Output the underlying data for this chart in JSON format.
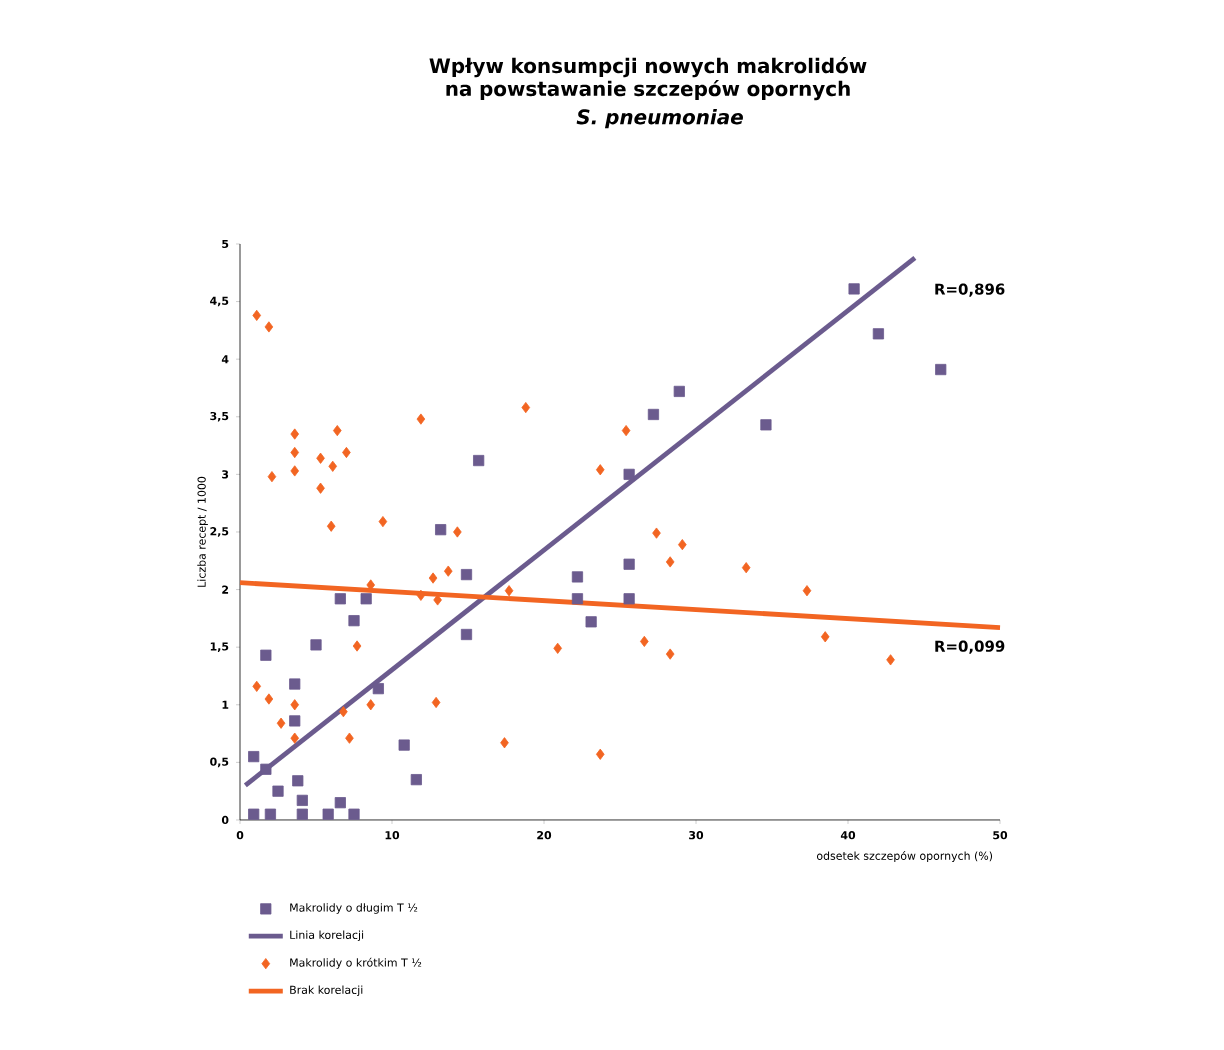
{
  "chart_data": {
    "type": "scatter",
    "title": "Wpływ konsumpcji nowych makrolidów na powstawanie szczepów opornych",
    "subtitle": "S. pneumoniae",
    "xlabel": "odsetek szczepów opornych (%)",
    "ylabel": "Liczba recept / 1000",
    "xlim": [
      0,
      50
    ],
    "ylim": [
      0,
      5
    ],
    "xticks": [
      0,
      10,
      20,
      30,
      40,
      50
    ],
    "yticks": [
      0,
      {
        "value": 0.5,
        "label": "0,5"
      },
      1,
      {
        "value": 1.5,
        "label": "1,5"
      },
      2,
      {
        "value": 2.5,
        "label": "2,5"
      },
      3,
      {
        "value": 3.5,
        "label": "3,5"
      },
      4,
      {
        "value": 4.5,
        "label": "4,5"
      },
      5
    ],
    "grid": false,
    "legend": "bottom",
    "series": [
      {
        "name": "Makrolidy o długim T ½",
        "marker": "square",
        "color": "#6b5b8e",
        "x": [
          0.9,
          0.9,
          1.7,
          1.7,
          2.0,
          2.5,
          3.6,
          3.6,
          3.8,
          4.1,
          4.1,
          5.8,
          5.0,
          6.6,
          6.6,
          7.5,
          7.5,
          8.3,
          9.1,
          10.8,
          11.6,
          13.2,
          14.9,
          14.9,
          22.2,
          22.2,
          23.1,
          25.6,
          25.6,
          15.7,
          25.6,
          27.2,
          28.9,
          34.6,
          40.4,
          42.0,
          46.1
        ],
        "values": [
          0.55,
          0.05,
          1.43,
          0.44,
          0.05,
          0.25,
          1.18,
          0.86,
          0.34,
          0.17,
          0.05,
          0.05,
          1.52,
          1.92,
          0.15,
          1.73,
          0.05,
          1.92,
          1.14,
          0.65,
          0.35,
          2.52,
          2.13,
          1.61,
          2.11,
          1.92,
          1.72,
          2.22,
          1.92,
          3.12,
          3.0,
          3.52,
          3.72,
          3.43,
          4.61,
          4.22,
          3.91
        ]
      },
      {
        "name": "Linia korelacji",
        "type": "line",
        "marker": "none",
        "color": "#6b5b8e",
        "x": [
          0.35,
          44.4
        ],
        "values": [
          0.3,
          4.88
        ]
      },
      {
        "name": "Makrolidy o krótkim T ½",
        "marker": "diamond",
        "color": "#f26522",
        "x": [
          1.1,
          1.9,
          2.1,
          3.6,
          3.6,
          3.6,
          5.3,
          5.3,
          6.1,
          6.4,
          7.0,
          11.9,
          18.8,
          23.7,
          25.4,
          6.0,
          9.4,
          14.3,
          12.7,
          13.7,
          11.9,
          13.0,
          8.6,
          17.7,
          7.7,
          1.1,
          1.9,
          2.7,
          3.6,
          3.6,
          6.8,
          7.2,
          8.6,
          12.9,
          17.4,
          23.7,
          20.9,
          26.6,
          27.4,
          28.3,
          29.1,
          28.3,
          33.3,
          37.3,
          38.5,
          42.8
        ],
        "values": [
          4.38,
          4.28,
          2.98,
          3.35,
          3.19,
          3.03,
          3.14,
          2.88,
          3.07,
          3.38,
          3.19,
          3.48,
          3.58,
          3.04,
          3.38,
          2.55,
          2.59,
          2.5,
          2.1,
          2.16,
          1.95,
          1.91,
          2.04,
          1.99,
          1.51,
          1.16,
          1.05,
          0.84,
          1.0,
          0.71,
          0.94,
          0.71,
          1.0,
          1.02,
          0.67,
          0.57,
          1.49,
          1.55,
          2.49,
          2.24,
          2.39,
          1.44,
          2.19,
          1.99,
          1.59,
          1.39
        ]
      },
      {
        "name": "Brak korelacji",
        "type": "line",
        "marker": "none",
        "color": "#f26522",
        "x": [
          0,
          50
        ],
        "values": [
          2.06,
          1.67
        ]
      }
    ],
    "annotations": [
      "R=0,896",
      "R=0,099"
    ]
  }
}
